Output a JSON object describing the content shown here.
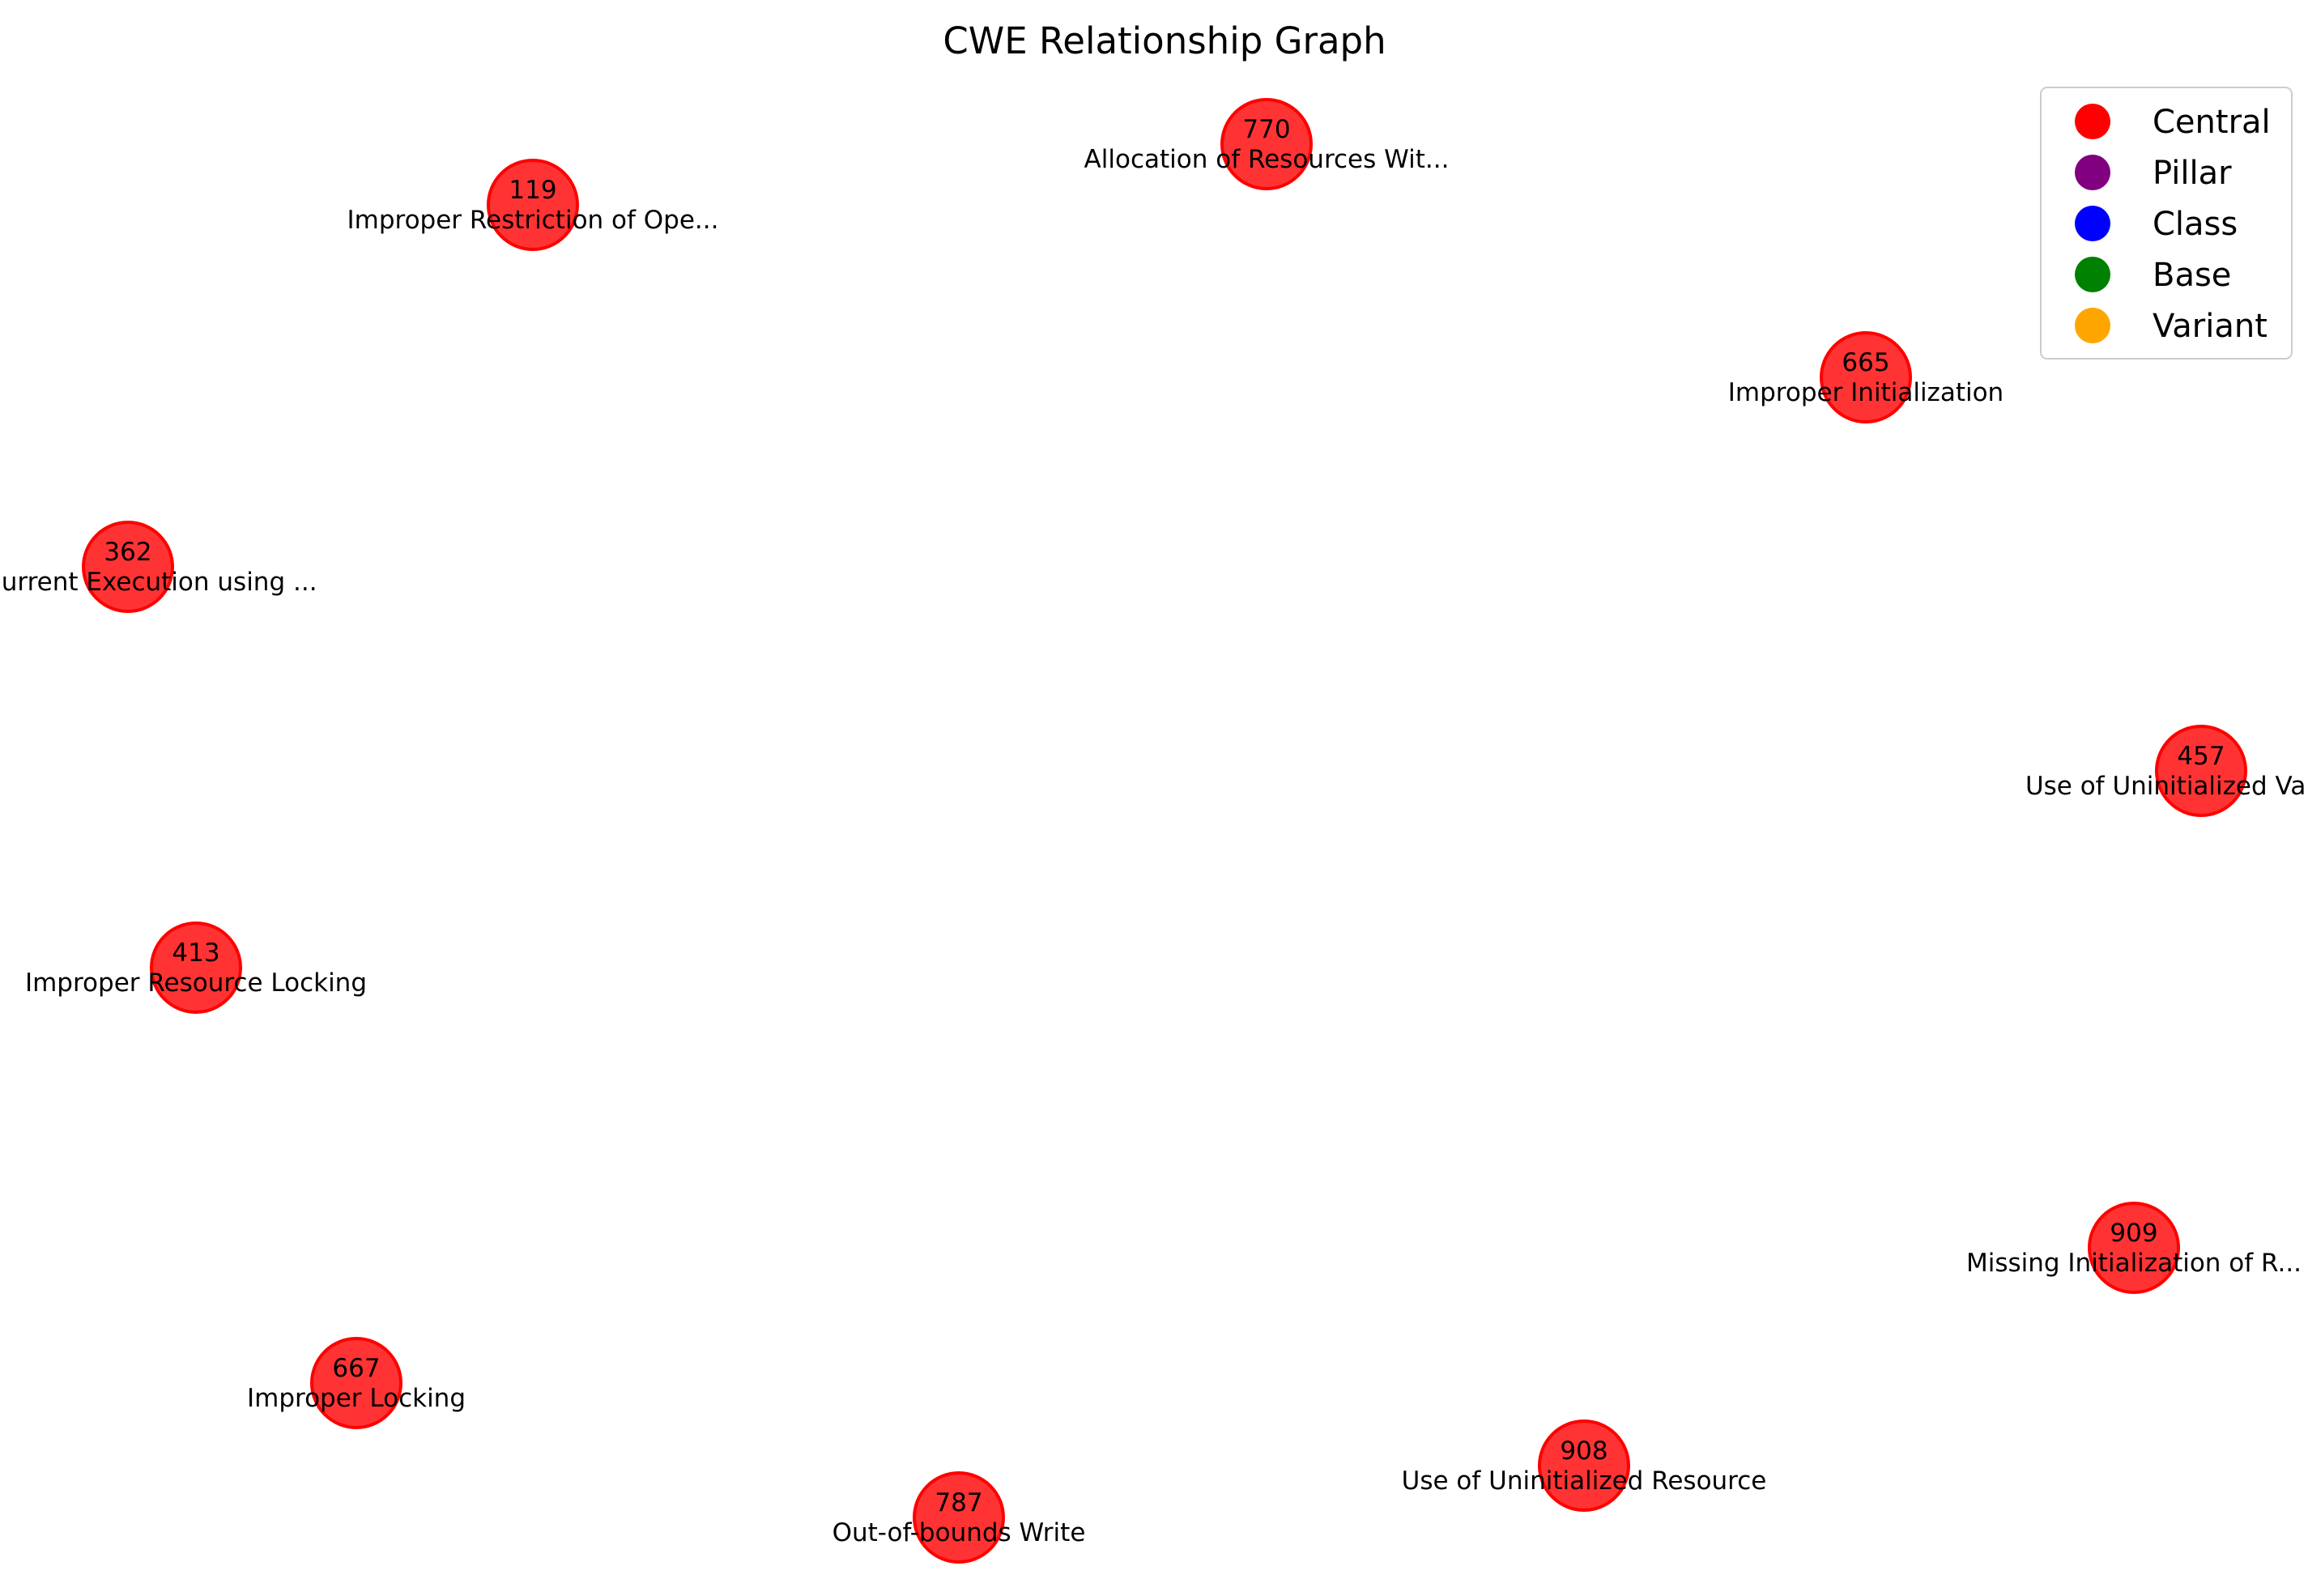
{
  "title": "CWE Relationship Graph",
  "legend": [
    {
      "label": "Central",
      "color": "#ff0000"
    },
    {
      "label": "Pillar",
      "color": "#800080"
    },
    {
      "label": "Class",
      "color": "#0000ff"
    },
    {
      "label": "Base",
      "color": "#008000"
    },
    {
      "label": "Variant",
      "color": "#ffa500"
    }
  ],
  "nodes": [
    {
      "id": "770",
      "label": "Allocation of Resources Wit...",
      "type": "Central"
    },
    {
      "id": "119",
      "label": "Improper Restriction of Ope...",
      "type": "Central"
    },
    {
      "id": "665",
      "label": "Improper Initialization",
      "type": "Central"
    },
    {
      "id": "362",
      "label": "Concurrent Execution using ...",
      "type": "Central"
    },
    {
      "id": "457",
      "label": "Use of Uninitialized Variable",
      "type": "Central"
    },
    {
      "id": "413",
      "label": "Improper Resource Locking",
      "type": "Central"
    },
    {
      "id": "909",
      "label": "Missing Initialization of R...",
      "type": "Central"
    },
    {
      "id": "667",
      "label": "Improper Locking",
      "type": "Central"
    },
    {
      "id": "908",
      "label": "Use of Uninitialized Resource",
      "type": "Central"
    },
    {
      "id": "787",
      "label": "Out-of-bounds Write",
      "type": "Central"
    }
  ]
}
